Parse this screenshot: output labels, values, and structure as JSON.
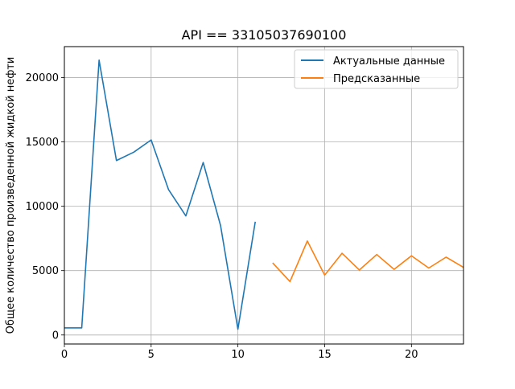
{
  "chart_data": {
    "type": "line",
    "title": "API == 33105037690100",
    "xlabel": "",
    "ylabel": "Общее количество произведенной жидкой нефти",
    "xlim": [
      0,
      23
    ],
    "ylim": [
      -700,
      22400
    ],
    "xticks": [
      0,
      5,
      10,
      15,
      20
    ],
    "yticks": [
      0,
      5000,
      10000,
      15000,
      20000
    ],
    "grid": true,
    "legend_position": "top-right",
    "series": [
      {
        "name": "Актуальные данные",
        "color": "#1f77b4",
        "x": [
          0,
          1,
          2,
          3,
          4,
          5,
          6,
          7,
          8,
          9,
          10,
          11
        ],
        "y": [
          550,
          550,
          21350,
          13550,
          14200,
          15150,
          11300,
          9250,
          13400,
          8500,
          450,
          8800
        ]
      },
      {
        "name": "Предсказанные",
        "color": "#ff7f0e",
        "x": [
          12,
          13,
          14,
          15,
          16,
          17,
          18,
          19,
          20,
          21,
          22,
          23
        ],
        "y": [
          5600,
          4150,
          7300,
          4650,
          6350,
          5050,
          6250,
          5100,
          6150,
          5200,
          6050,
          5250
        ]
      }
    ]
  }
}
